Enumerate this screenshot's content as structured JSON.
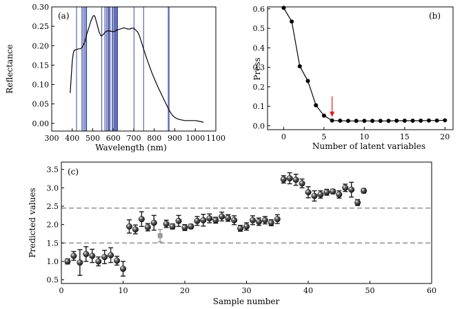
{
  "chart_data": [
    {
      "id": "a",
      "panel_label": "(a)",
      "type": "line",
      "xlabel": "Wavelength (nm)",
      "ylabel": "Reflectance",
      "xlim": [
        300,
        1100
      ],
      "ylim": [
        -0.02,
        0.3
      ],
      "xticks": [
        300,
        400,
        500,
        600,
        700,
        800,
        900,
        1000,
        1100
      ],
      "yticks": [
        0.0,
        0.05,
        0.1,
        0.15,
        0.2,
        0.25,
        0.3
      ],
      "series_color": "#000000",
      "vline_color": "#3a4aa0",
      "vlines": [
        421,
        447,
        453,
        460,
        466,
        470,
        544,
        559,
        566,
        572,
        577,
        580,
        585,
        595,
        599,
        605,
        609,
        613,
        617,
        621,
        701,
        748,
        868,
        872
      ],
      "x": [
        390,
        395,
        400,
        405,
        410,
        420,
        430,
        440,
        450,
        460,
        470,
        480,
        490,
        500,
        505,
        510,
        520,
        530,
        540,
        550,
        560,
        570,
        580,
        590,
        600,
        610,
        620,
        630,
        640,
        650,
        660,
        670,
        680,
        690,
        700,
        710,
        720,
        730,
        740,
        750,
        760,
        770,
        780,
        790,
        800,
        810,
        820,
        830,
        840,
        850,
        860,
        870,
        880,
        890,
        900,
        910,
        920,
        930,
        940,
        950,
        960,
        970,
        980,
        990,
        1000,
        1010,
        1020,
        1030,
        1040
      ],
      "y": [
        0.078,
        0.12,
        0.16,
        0.18,
        0.188,
        0.19,
        0.192,
        0.192,
        0.197,
        0.208,
        0.228,
        0.245,
        0.262,
        0.275,
        0.278,
        0.276,
        0.258,
        0.237,
        0.225,
        0.228,
        0.235,
        0.238,
        0.238,
        0.237,
        0.236,
        0.238,
        0.241,
        0.242,
        0.244,
        0.246,
        0.245,
        0.243,
        0.243,
        0.245,
        0.245,
        0.24,
        0.235,
        0.222,
        0.205,
        0.188,
        0.172,
        0.157,
        0.142,
        0.128,
        0.115,
        0.103,
        0.091,
        0.08,
        0.069,
        0.058,
        0.047,
        0.036,
        0.027,
        0.02,
        0.015,
        0.012,
        0.01,
        0.009,
        0.008,
        0.007,
        0.007,
        0.007,
        0.007,
        0.007,
        0.007,
        0.006,
        0.005,
        0.004,
        0.003
      ]
    },
    {
      "id": "b",
      "panel_label": "(b)",
      "type": "line",
      "xlabel": "Number of latent variables",
      "ylabel": "Press",
      "xlim": [
        -2,
        21
      ],
      "ylim": [
        -0.02,
        0.61
      ],
      "xticks": [
        0,
        5,
        10,
        15,
        20
      ],
      "yticks": [
        0.0,
        0.1,
        0.2,
        0.3,
        0.4,
        0.5,
        0.6
      ],
      "series_color": "#000000",
      "arrow_color": "#e02020",
      "arrow_x": 6,
      "x": [
        0,
        1,
        2,
        3,
        4,
        5,
        6,
        7,
        8,
        9,
        10,
        11,
        12,
        13,
        14,
        15,
        16,
        17,
        18,
        19,
        20
      ],
      "y": [
        0.605,
        0.535,
        0.305,
        0.23,
        0.105,
        0.052,
        0.027,
        0.026,
        0.025,
        0.025,
        0.025,
        0.025,
        0.025,
        0.025,
        0.026,
        0.026,
        0.026,
        0.026,
        0.027,
        0.027,
        0.028
      ]
    },
    {
      "id": "c",
      "panel_label": "(c)",
      "type": "scatter",
      "xlabel": "Sample number",
      "ylabel": "Predicted values",
      "xlim": [
        0,
        60
      ],
      "ylim": [
        0.4,
        3.7
      ],
      "xticks": [
        0,
        10,
        20,
        30,
        40,
        50,
        60
      ],
      "yticks": [
        0.5,
        1.0,
        1.5,
        2.0,
        2.5,
        3.0,
        3.5
      ],
      "hlines": [
        1.5,
        2.45
      ],
      "hline_color": "#888888",
      "series_color": "#1a1a1a",
      "outlier_color": "#999999",
      "outlier_index": 15,
      "x": [
        1,
        2,
        3,
        4,
        5,
        6,
        7,
        8,
        9,
        10,
        11,
        12,
        13,
        14,
        15,
        16,
        17,
        18,
        19,
        20,
        21,
        22,
        23,
        24,
        25,
        26,
        27,
        28,
        29,
        30,
        31,
        32,
        33,
        34,
        35,
        36,
        37,
        38,
        39,
        40,
        41,
        42,
        43,
        44,
        45,
        46,
        47,
        48,
        49
      ],
      "y": [
        1.0,
        1.15,
        0.97,
        1.2,
        1.15,
        1.0,
        1.12,
        1.17,
        1.02,
        0.8,
        1.95,
        1.87,
        2.15,
        1.93,
        2.05,
        1.7,
        2.02,
        1.95,
        2.1,
        1.92,
        1.95,
        2.1,
        2.12,
        2.17,
        2.12,
        2.22,
        2.18,
        2.12,
        1.9,
        1.95,
        2.12,
        2.08,
        2.12,
        2.05,
        2.15,
        3.23,
        3.26,
        3.22,
        3.12,
        2.88,
        2.78,
        2.82,
        2.88,
        2.9,
        2.82,
        3.0,
        2.95,
        2.6,
        2.92
      ],
      "err": [
        0.07,
        0.12,
        0.35,
        0.2,
        0.18,
        0.12,
        0.18,
        0.2,
        0.12,
        0.2,
        0.18,
        0.12,
        0.2,
        0.1,
        0.2,
        0.17,
        0.1,
        0.07,
        0.15,
        0.08,
        0.06,
        0.12,
        0.16,
        0.12,
        0.08,
        0.12,
        0.09,
        0.12,
        0.08,
        0.1,
        0.12,
        0.1,
        0.1,
        0.08,
        0.12,
        0.1,
        0.15,
        0.15,
        0.12,
        0.15,
        0.14,
        0.1,
        0.08,
        0.06,
        0.1,
        0.1,
        0.2,
        0.08,
        0.06
      ]
    }
  ]
}
